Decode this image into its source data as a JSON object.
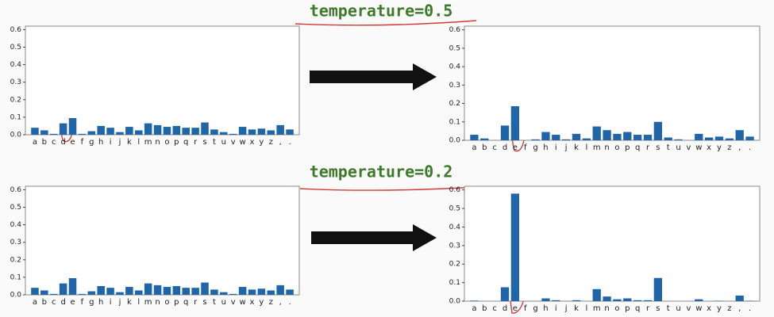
{
  "chart_data": [
    {
      "type": "bar",
      "color": "#1f65a8",
      "categories": [
        "a",
        "b",
        "c",
        "d",
        "e",
        "f",
        "g",
        "h",
        "i",
        "j",
        "k",
        "l",
        "m",
        "n",
        "o",
        "p",
        "q",
        "r",
        "s",
        "t",
        "u",
        "v",
        "w",
        "x",
        "y",
        "z",
        ",",
        "."
      ],
      "values": [
        0.04,
        0.025,
        0.005,
        0.065,
        0.095,
        0.005,
        0.02,
        0.05,
        0.04,
        0.015,
        0.045,
        0.025,
        0.065,
        0.055,
        0.045,
        0.05,
        0.04,
        0.04,
        0.07,
        0.03,
        0.015,
        0.005,
        0.045,
        0.03,
        0.035,
        0.025,
        0.055,
        0.03
      ],
      "ylim": [
        0,
        0.62
      ],
      "yticks": [
        {
          "value": 0,
          "label": "0.0"
        },
        0.1,
        0.2,
        0.3,
        0.4,
        0.5,
        0.6
      ]
    },
    {
      "type": "bar",
      "color": "#1f65a8",
      "title": "temperature=0.5",
      "categories": [
        "a",
        "b",
        "c",
        "d",
        "e",
        "f",
        "g",
        "h",
        "i",
        "j",
        "k",
        "l",
        "m",
        "n",
        "o",
        "p",
        "q",
        "r",
        "s",
        "t",
        "u",
        "v",
        "w",
        "x",
        "y",
        "z",
        ",",
        "."
      ],
      "values": [
        0.03,
        0.01,
        0.0,
        0.08,
        0.185,
        0.0,
        0.005,
        0.045,
        0.03,
        0.005,
        0.035,
        0.01,
        0.075,
        0.055,
        0.035,
        0.045,
        0.03,
        0.03,
        0.1,
        0.015,
        0.005,
        0.0,
        0.035,
        0.015,
        0.02,
        0.01,
        0.055,
        0.02
      ],
      "ylim": [
        0,
        0.62
      ],
      "yticks": [
        {
          "value": 0,
          "label": "0.0"
        },
        0.1,
        0.2,
        0.3,
        0.4,
        0.5,
        0.6
      ]
    },
    {
      "type": "bar",
      "color": "#1f65a8",
      "categories": [
        "a",
        "b",
        "c",
        "d",
        "e",
        "f",
        "g",
        "h",
        "i",
        "j",
        "k",
        "l",
        "m",
        "n",
        "o",
        "p",
        "q",
        "r",
        "s",
        "t",
        "u",
        "v",
        "w",
        "x",
        "y",
        "z",
        ",",
        "."
      ],
      "values": [
        0.04,
        0.025,
        0.005,
        0.065,
        0.095,
        0.005,
        0.02,
        0.05,
        0.04,
        0.015,
        0.045,
        0.025,
        0.065,
        0.055,
        0.045,
        0.05,
        0.04,
        0.04,
        0.07,
        0.03,
        0.015,
        0.005,
        0.045,
        0.03,
        0.035,
        0.025,
        0.055,
        0.03
      ],
      "ylim": [
        0,
        0.62
      ],
      "yticks": [
        {
          "value": 0,
          "label": "0.0"
        },
        0.1,
        0.2,
        0.3,
        0.4,
        0.5,
        0.6
      ]
    },
    {
      "type": "bar",
      "color": "#1f65a8",
      "title": "temperature=0.2",
      "categories": [
        "a",
        "b",
        "c",
        "d",
        "e",
        "f",
        "g",
        "h",
        "i",
        "j",
        "k",
        "l",
        "m",
        "n",
        "o",
        "p",
        "q",
        "r",
        "s",
        "t",
        "u",
        "v",
        "w",
        "x",
        "y",
        "z",
        ",",
        "."
      ],
      "values": [
        0.003,
        0.0,
        0.0,
        0.075,
        0.58,
        0.0,
        0.0,
        0.015,
        0.005,
        0.0,
        0.005,
        0.0,
        0.065,
        0.025,
        0.01,
        0.015,
        0.005,
        0.005,
        0.125,
        0.0,
        0.0,
        0.0,
        0.01,
        0.0,
        0.002,
        0.0,
        0.03,
        0.002
      ],
      "ylim": [
        0,
        0.62
      ],
      "yticks": [
        {
          "value": 0,
          "label": "0.0"
        },
        0.1,
        0.2,
        0.3,
        0.4,
        0.5,
        0.6
      ]
    }
  ]
}
